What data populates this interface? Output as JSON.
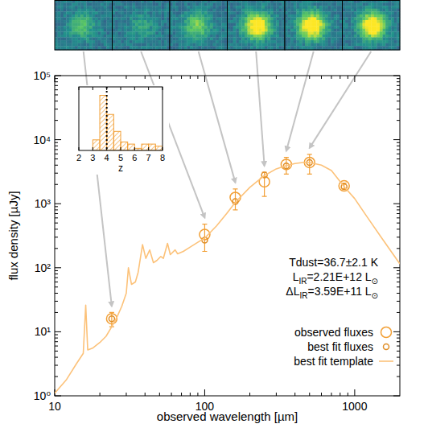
{
  "chart_data": [
    {
      "type": "scatter",
      "x_label": "observed wavelength [µm]",
      "y_label": "flux density [µJy]",
      "log": true,
      "xlim": [
        10,
        2000
      ],
      "ylim": [
        1,
        100000
      ],
      "xticks": [
        10,
        100,
        1000
      ],
      "yticks": [
        {
          "value": 1,
          "label": "10⁰"
        },
        {
          "value": 10,
          "label": "10¹"
        },
        {
          "value": 100,
          "label": "10²"
        },
        {
          "value": 1000,
          "label": "10³"
        },
        {
          "value": 10000,
          "label": "10⁴"
        },
        {
          "value": 100000,
          "label": "10⁵"
        }
      ],
      "legend": "lower right",
      "annotations": [
        [
          "Tdust=36.7±2.1 K"
        ],
        [
          "L",
          "IR",
          "=2.21E+12 L",
          "⊙"
        ],
        [
          "ΔL",
          "IR",
          "=3.59E+11 L",
          "⊙"
        ]
      ],
      "series": [
        {
          "name": "observed fluxes",
          "type": "scatter",
          "marker": "circle",
          "color": "#f2a037",
          "x": [
            24,
            100,
            160,
            250,
            350,
            500,
            850
          ],
          "values": [
            16,
            330,
            1250,
            2200,
            4100,
            4400,
            1900
          ],
          "errors": [
            4,
            150,
            450,
            900,
            1200,
            1500,
            200
          ]
        },
        {
          "name": "best fit fluxes",
          "type": "scatter",
          "marker": "small-circle",
          "color": "#e08e26",
          "x": [
            24,
            100,
            160,
            250,
            350,
            500,
            850
          ],
          "values": [
            16,
            270,
            1080,
            2800,
            3900,
            4400,
            1850
          ]
        },
        {
          "name": "best fit template",
          "type": "line",
          "line_style": "solid",
          "color": "#fcc27a",
          "x": [
            10,
            12,
            14,
            15.5,
            16.1,
            16.6,
            18,
            20,
            22,
            24,
            26,
            28,
            30,
            31,
            32.5,
            34.5,
            36,
            38.5,
            40.5,
            43,
            45.5,
            48,
            51,
            53,
            56.5,
            59,
            63.5,
            66,
            72,
            80,
            90,
            100,
            120,
            140,
            160,
            200,
            250,
            300,
            350,
            400,
            450,
            500,
            600,
            700,
            850,
            1000,
            1200,
            1500,
            2000
          ],
          "values": [
            1.1,
            1.8,
            3.2,
            4.6,
            26,
            5.2,
            5.6,
            6.8,
            8.5,
            12,
            17,
            25,
            40,
            100,
            55,
            60,
            85,
            230,
            140,
            190,
            120,
            130,
            150,
            140,
            240,
            160,
            190,
            165,
            180,
            210,
            250,
            290,
            450,
            700,
            1050,
            1800,
            2750,
            3500,
            3950,
            4250,
            4400,
            4400,
            4000,
            3300,
            1850,
            1200,
            640,
            300,
            115
          ]
        }
      ]
    },
    {
      "type": "histogram",
      "x_label": "z",
      "bins": [
        2,
        2.5,
        3,
        3.5,
        4,
        4.5,
        5,
        5.5,
        6,
        6.5,
        7,
        7.5,
        8
      ],
      "counts": [
        0,
        0,
        5,
        26,
        17,
        9,
        4,
        3,
        1,
        3,
        3,
        2
      ],
      "xlim": [
        2,
        8
      ],
      "ylim": [
        0,
        30
      ],
      "xticks": [
        2,
        3,
        4,
        5,
        6,
        7,
        8
      ],
      "tick_labels": "x",
      "color": "#f2a037",
      "vline": 4
    }
  ]
}
